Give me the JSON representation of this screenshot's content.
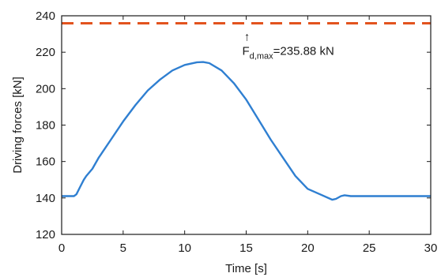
{
  "chart_data": {
    "type": "line",
    "xlabel": "Time [s]",
    "ylabel": "Driving forces  [kN]",
    "xlim": [
      0,
      30
    ],
    "ylim": [
      120,
      240
    ],
    "xticks": [
      "0",
      "5",
      "10",
      "15",
      "20",
      "25",
      "30"
    ],
    "yticks": [
      "120",
      "140",
      "160",
      "180",
      "200",
      "220",
      "240"
    ],
    "grid": false,
    "series": [
      {
        "color": "#2f7fd1",
        "style": "solid",
        "x": [
          0,
          0.5,
          1.0,
          1.2,
          1.5,
          1.8,
          2.0,
          2.5,
          3,
          4,
          5,
          6,
          7,
          8,
          9,
          10,
          11,
          11.5,
          12,
          13,
          14,
          15,
          16,
          17,
          18,
          19,
          20,
          21,
          22.0,
          22.3,
          22.7,
          23.0,
          23.5,
          24,
          25,
          26,
          27,
          28,
          29,
          30
        ],
        "y": [
          141,
          141,
          141,
          142,
          146,
          150,
          152,
          156,
          162,
          172,
          182,
          191,
          199,
          205,
          210,
          213,
          214.5,
          214.6,
          214,
          210,
          203,
          194,
          183,
          172,
          162,
          152,
          145,
          142,
          139,
          139.5,
          141,
          141.5,
          141,
          141,
          141,
          141,
          141,
          141,
          141,
          141
        ]
      },
      {
        "color": "#e2531e",
        "style": "dashed",
        "x": [
          0,
          30
        ],
        "y": [
          235.88,
          235.88
        ]
      }
    ],
    "annotations": [
      {
        "arrow": "↑",
        "main": "F",
        "sub": "d,max",
        "rest": "=235.88 kN",
        "x": 15,
        "y": 235.88
      }
    ]
  }
}
